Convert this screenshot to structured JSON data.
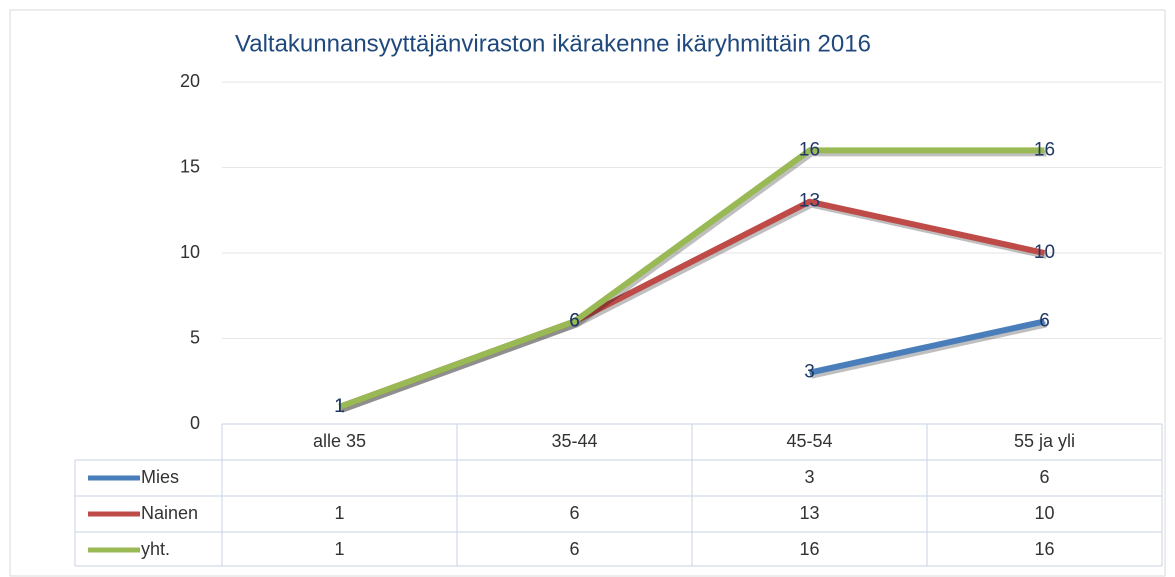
{
  "chart_data": {
    "type": "line",
    "title": "Valtakunnansyyttäjänviraston ikärakenne ikäryhmittäin 2016",
    "categories": [
      "alle 35",
      "35-44",
      "45-54",
      "55 ja yli"
    ],
    "series": [
      {
        "name": "Mies",
        "color": "#4a7ebb",
        "values": [
          null,
          null,
          3,
          6
        ]
      },
      {
        "name": "Nainen",
        "color": "#be4b48",
        "values": [
          1,
          6,
          13,
          10
        ]
      },
      {
        "name": "yht.",
        "color": "#98b954",
        "values": [
          1,
          6,
          16,
          16
        ]
      }
    ],
    "ylim": [
      0,
      20
    ],
    "yticks": [
      0,
      5,
      10,
      15,
      20
    ],
    "grid": true,
    "data_table": true
  }
}
